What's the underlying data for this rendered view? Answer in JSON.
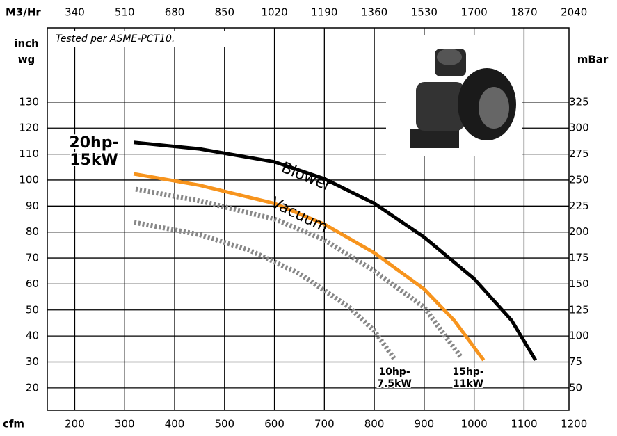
{
  "chart_data": {
    "type": "line",
    "note": "Tested per ASME-PCT10.",
    "x_label": "cfm",
    "x2_label": "M3/Hr",
    "y_label": [
      "inch",
      "wg"
    ],
    "y2_label": "mBar",
    "xlim": [
      145,
      1190
    ],
    "xticks": [
      200,
      300,
      400,
      500,
      600,
      700,
      800,
      900,
      1000,
      1100,
      1200
    ],
    "x2lim": [
      246.5,
      2023
    ],
    "x2ticks": [
      340,
      510,
      680,
      850,
      1020,
      1190,
      1360,
      1530,
      1700,
      1870,
      2040
    ],
    "ylim": [
      11.4,
      158.6
    ],
    "yticks": [
      20,
      30,
      40,
      50,
      60,
      70,
      80,
      90,
      100,
      110,
      120,
      130
    ],
    "y2lim": [
      28.5,
      396.5
    ],
    "y2ticks": [
      50,
      75,
      100,
      125,
      150,
      175,
      200,
      225,
      250,
      275,
      300,
      325
    ],
    "grid": true,
    "series": [
      {
        "name": "Blower",
        "label": [
          "20hp-",
          "15kW"
        ],
        "color": "#000000",
        "dashed": false,
        "x": [
          318,
          450,
          600,
          700,
          800,
          900,
          1000,
          1075,
          1123
        ],
        "values": [
          114.5,
          112,
          107,
          100.5,
          91,
          78,
          62,
          46,
          30.7
        ]
      },
      {
        "name": "Vacuum",
        "color": "#f7941d",
        "dashed": false,
        "x": [
          318,
          450,
          600,
          700,
          800,
          900,
          960,
          1019
        ],
        "values": [
          102.4,
          98,
          91,
          83,
          72,
          58,
          46,
          30.7
        ]
      },
      {
        "label": [
          "15hp-",
          "11kW"
        ],
        "color": "#888888",
        "dashed": true,
        "x": [
          322,
          450,
          600,
          700,
          800,
          900,
          973
        ],
        "values": [
          96.5,
          92,
          85,
          77,
          65,
          51,
          32
        ]
      },
      {
        "label": [
          "10hp-",
          "7.5kW"
        ],
        "color": "#888888",
        "dashed": true,
        "x": [
          319,
          450,
          550,
          650,
          750,
          800,
          842
        ],
        "values": [
          83.7,
          79,
          73,
          64,
          51,
          42,
          30.7
        ]
      }
    ]
  }
}
